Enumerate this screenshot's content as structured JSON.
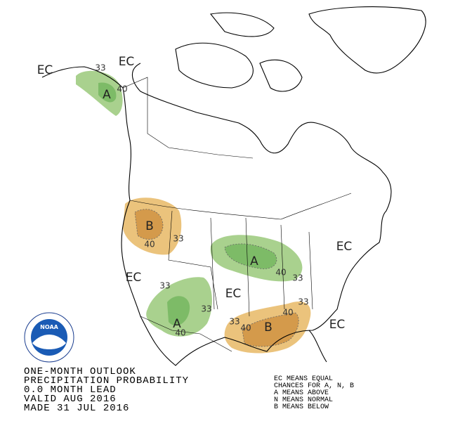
{
  "map_labels": [
    "EC",
    "EC",
    "33",
    "40",
    "A",
    "B",
    "40",
    "33",
    "EC",
    "33",
    "A",
    "33",
    "40",
    "EC",
    "A",
    "40",
    "33",
    "EC",
    "33",
    "40",
    "B",
    "40",
    "33",
    "EC"
  ],
  "logo_text": "NOAA",
  "title_lines": [
    "ONE-MONTH OUTLOOK",
    "PRECIPITATION PROBABILITY",
    "0.0 MONTH LEAD",
    "VALID AUG 2016",
    "MADE 31 JUL 2016"
  ],
  "legend_lines": [
    "EC MEANS EQUAL",
    "CHANCES FOR A, N, B",
    "A MEANS ABOVE",
    "N MEANS NORMAL",
    "B MEANS BELOW"
  ]
}
